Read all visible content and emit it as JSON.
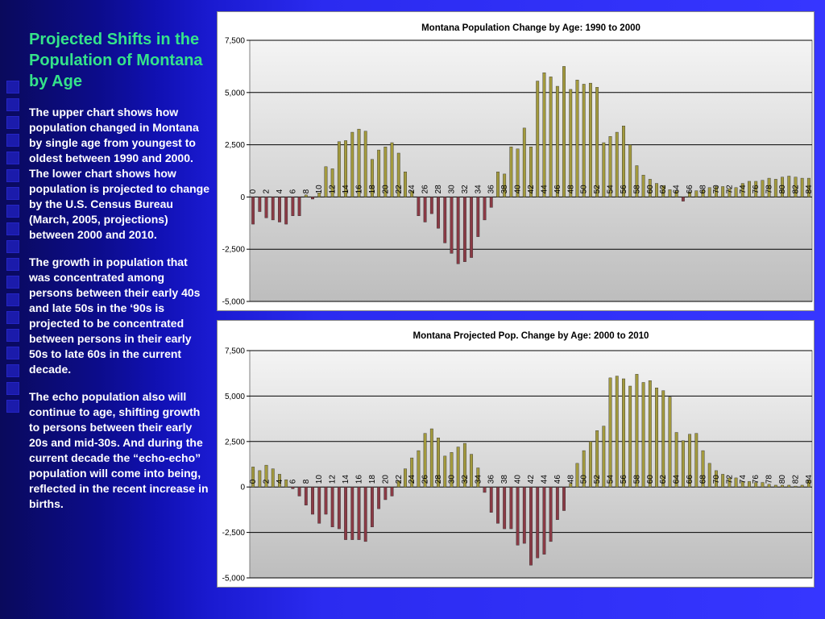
{
  "sidebar": {
    "title": "Projected Shifts in the Population of Montana by Age",
    "paragraphs": [
      "The upper chart shows how population changed in Montana by single age from youngest to oldest between 1990 and 2000.  The lower chart shows how population is projected to change by the U.S. Census Bureau (March, 2005, projections) between 2000 and 2010.",
      "The growth in population that was concentrated among persons between their early 40s and late 50s in the ‘90s is projected to be concentrated between persons in their early 50s to late 60s in the current decade.",
      "The echo population also will continue to age, shifting growth to persons between their early 20s and mid-30s.  And during the current decade the “echo-echo” population will come into being, reflected in the recent increase in births."
    ]
  },
  "chart_data": [
    {
      "type": "bar",
      "title": "Montana Population Change by Age: 1990 to 2000",
      "ylim": [
        -5000,
        7500
      ],
      "yticks": [
        7500,
        5000,
        2500,
        0,
        -2500,
        -5000
      ],
      "ytick_labels": [
        "7,500",
        "5,000",
        "2,500",
        "0",
        "-2,500",
        "-5,000"
      ],
      "grid": true,
      "categories": [
        0,
        1,
        2,
        3,
        4,
        5,
        6,
        7,
        8,
        9,
        10,
        11,
        12,
        13,
        14,
        15,
        16,
        17,
        18,
        19,
        20,
        21,
        22,
        23,
        24,
        25,
        26,
        27,
        28,
        29,
        30,
        31,
        32,
        33,
        34,
        35,
        36,
        37,
        38,
        39,
        40,
        41,
        42,
        43,
        44,
        45,
        46,
        47,
        48,
        49,
        50,
        51,
        52,
        53,
        54,
        55,
        56,
        57,
        58,
        59,
        60,
        61,
        62,
        63,
        64,
        65,
        66,
        67,
        68,
        69,
        70,
        71,
        72,
        73,
        74,
        75,
        76,
        77,
        78,
        79,
        80,
        81,
        82,
        83,
        84
      ],
      "xtick_labels": [
        "0",
        "2",
        "4",
        "6",
        "8",
        "10",
        "12",
        "14",
        "16",
        "18",
        "20",
        "22",
        "24",
        "26",
        "28",
        "30",
        "32",
        "34",
        "36",
        "38",
        "40",
        "42",
        "44",
        "46",
        "48",
        "50",
        "52",
        "54",
        "56",
        "58",
        "60",
        "62",
        "64",
        "66",
        "68",
        "70",
        "72",
        "74",
        "76",
        "78",
        "80",
        "82",
        "84"
      ],
      "values": [
        -1300,
        -700,
        -1000,
        -1100,
        -1200,
        -1300,
        -900,
        -900,
        100,
        -100,
        200,
        1450,
        1350,
        2650,
        2700,
        3100,
        3250,
        3150,
        1800,
        2250,
        2400,
        2600,
        2100,
        1200,
        300,
        -900,
        -1200,
        -800,
        -1500,
        -2200,
        -2700,
        -3200,
        -3100,
        -2900,
        -1900,
        -1100,
        -500,
        1200,
        1100,
        2400,
        2300,
        3300,
        2400,
        5550,
        5950,
        5750,
        5300,
        6250,
        5150,
        5600,
        5400,
        5450,
        5250,
        2600,
        2900,
        3100,
        3400,
        2500,
        1500,
        1050,
        850,
        650,
        550,
        350,
        300,
        -200,
        250,
        300,
        350,
        450,
        500,
        500,
        400,
        450,
        650,
        750,
        750,
        800,
        900,
        850,
        950,
        1000,
        950,
        900,
        900
      ],
      "colors": {
        "positive": "#a39a3d",
        "negative": "#8b3a45"
      }
    },
    {
      "type": "bar",
      "title": "Montana Projected Pop. Change by Age: 2000 to 2010",
      "ylim": [
        -5000,
        7500
      ],
      "yticks": [
        7500,
        5000,
        2500,
        0,
        -2500,
        -5000
      ],
      "ytick_labels": [
        "7,500",
        "5,000",
        "2,500",
        "0",
        "-2,500",
        "-5,000"
      ],
      "grid": true,
      "categories": [
        0,
        1,
        2,
        3,
        4,
        5,
        6,
        7,
        8,
        9,
        10,
        11,
        12,
        13,
        14,
        15,
        16,
        17,
        18,
        19,
        20,
        21,
        22,
        23,
        24,
        25,
        26,
        27,
        28,
        29,
        30,
        31,
        32,
        33,
        34,
        35,
        36,
        37,
        38,
        39,
        40,
        41,
        42,
        43,
        44,
        45,
        46,
        47,
        48,
        49,
        50,
        51,
        52,
        53,
        54,
        55,
        56,
        57,
        58,
        59,
        60,
        61,
        62,
        63,
        64,
        65,
        66,
        67,
        68,
        69,
        70,
        71,
        72,
        73,
        74,
        75,
        76,
        77,
        78,
        79,
        80,
        81,
        82,
        83,
        84
      ],
      "xtick_labels": [
        "0",
        "2",
        "4",
        "6",
        "8",
        "10",
        "12",
        "14",
        "16",
        "18",
        "20",
        "22",
        "24",
        "26",
        "28",
        "30",
        "32",
        "34",
        "36",
        "38",
        "40",
        "42",
        "44",
        "46",
        "48",
        "50",
        "52",
        "54",
        "56",
        "58",
        "60",
        "62",
        "64",
        "66",
        "68",
        "70",
        "72",
        "74",
        "76",
        "78",
        "80",
        "82",
        "84"
      ],
      "values": [
        1100,
        900,
        1200,
        1000,
        700,
        400,
        -100,
        -500,
        -1000,
        -1500,
        -2000,
        -1500,
        -2200,
        -2300,
        -2900,
        -2900,
        -2900,
        -3000,
        -2200,
        -1200,
        -700,
        -500,
        350,
        1000,
        1600,
        2000,
        2950,
        3200,
        2700,
        1700,
        1900,
        2200,
        2400,
        1800,
        1050,
        -300,
        -1400,
        -2000,
        -2300,
        -2300,
        -3200,
        -3100,
        -4300,
        -3900,
        -3700,
        -3000,
        -1800,
        -1300,
        200,
        1300,
        2000,
        2500,
        3100,
        3350,
        6000,
        6100,
        5950,
        5550,
        6200,
        5750,
        5850,
        5450,
        5300,
        4950,
        3000,
        2550,
        2900,
        2950,
        2000,
        1300,
        900,
        700,
        500,
        500,
        300,
        300,
        250,
        250,
        150,
        100,
        100,
        100,
        50,
        100,
        400
      ],
      "colors": {
        "positive": "#a39a3d",
        "negative": "#8b3a45"
      }
    }
  ]
}
